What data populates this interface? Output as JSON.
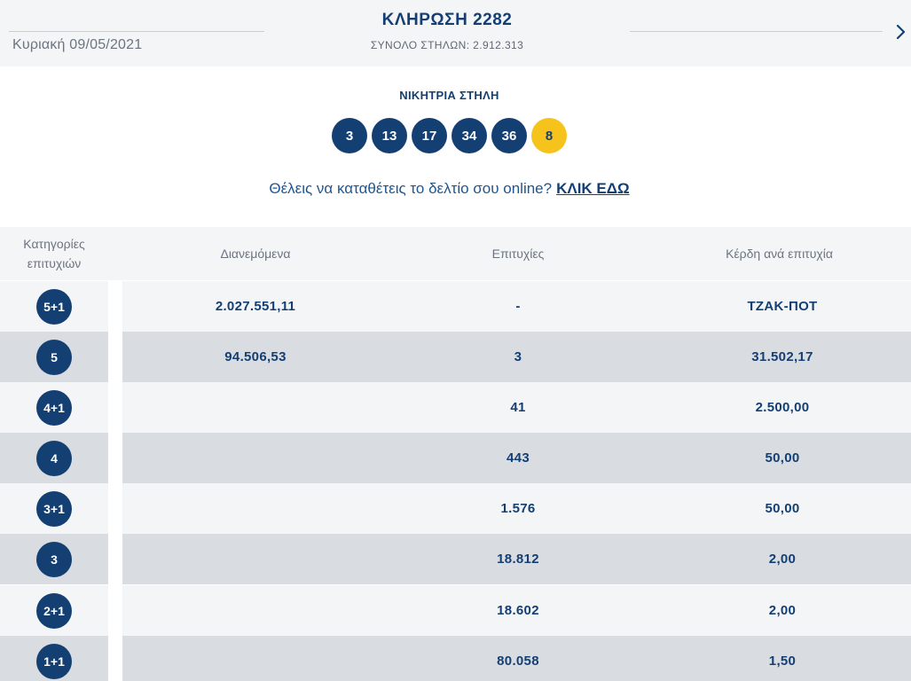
{
  "header": {
    "date": "Κυριακή 09/05/2021",
    "title": "ΚΛΗΡΩΣΗ 2282",
    "subtitle": "ΣΥΝΟΛΟ ΣΤΗΛΩΝ: 2.912.313",
    "next_icon": "chevron-right-icon"
  },
  "winning": {
    "title": "ΝΙΚΗΤΡΙΑ ΣΤΗΛΗ",
    "numbers": [
      "3",
      "13",
      "17",
      "34",
      "36"
    ],
    "bonus": "8",
    "colors": {
      "main": "#143f73",
      "bonus": "#f6c31c"
    }
  },
  "online": {
    "text": "Θέλεις να καταθέτεις το δελτίο σου online?",
    "link": "ΚΛΙΚ ΕΔΩ"
  },
  "table": {
    "headers": {
      "categories": "Κατηγορίες επιτυχιών",
      "distributed": "Διανεμόμενα",
      "successes": "Επιτυχίες",
      "prize": "Κέρδη ανά επιτυχία"
    },
    "rows": [
      {
        "category": "5+1",
        "distributed": "2.027.551,11",
        "successes": "-",
        "prize": "ΤΖΑΚ-ΠΟΤ"
      },
      {
        "category": "5",
        "distributed": "94.506,53",
        "successes": "3",
        "prize": "31.502,17"
      },
      {
        "category": "4+1",
        "distributed": "",
        "successes": "41",
        "prize": "2.500,00"
      },
      {
        "category": "4",
        "distributed": "",
        "successes": "443",
        "prize": "50,00"
      },
      {
        "category": "3+1",
        "distributed": "",
        "successes": "1.576",
        "prize": "50,00"
      },
      {
        "category": "3",
        "distributed": "",
        "successes": "18.812",
        "prize": "2,00"
      },
      {
        "category": "2+1",
        "distributed": "",
        "successes": "18.602",
        "prize": "2,00"
      },
      {
        "category": "1+1",
        "distributed": "",
        "successes": "80.058",
        "prize": "1,50"
      }
    ]
  }
}
